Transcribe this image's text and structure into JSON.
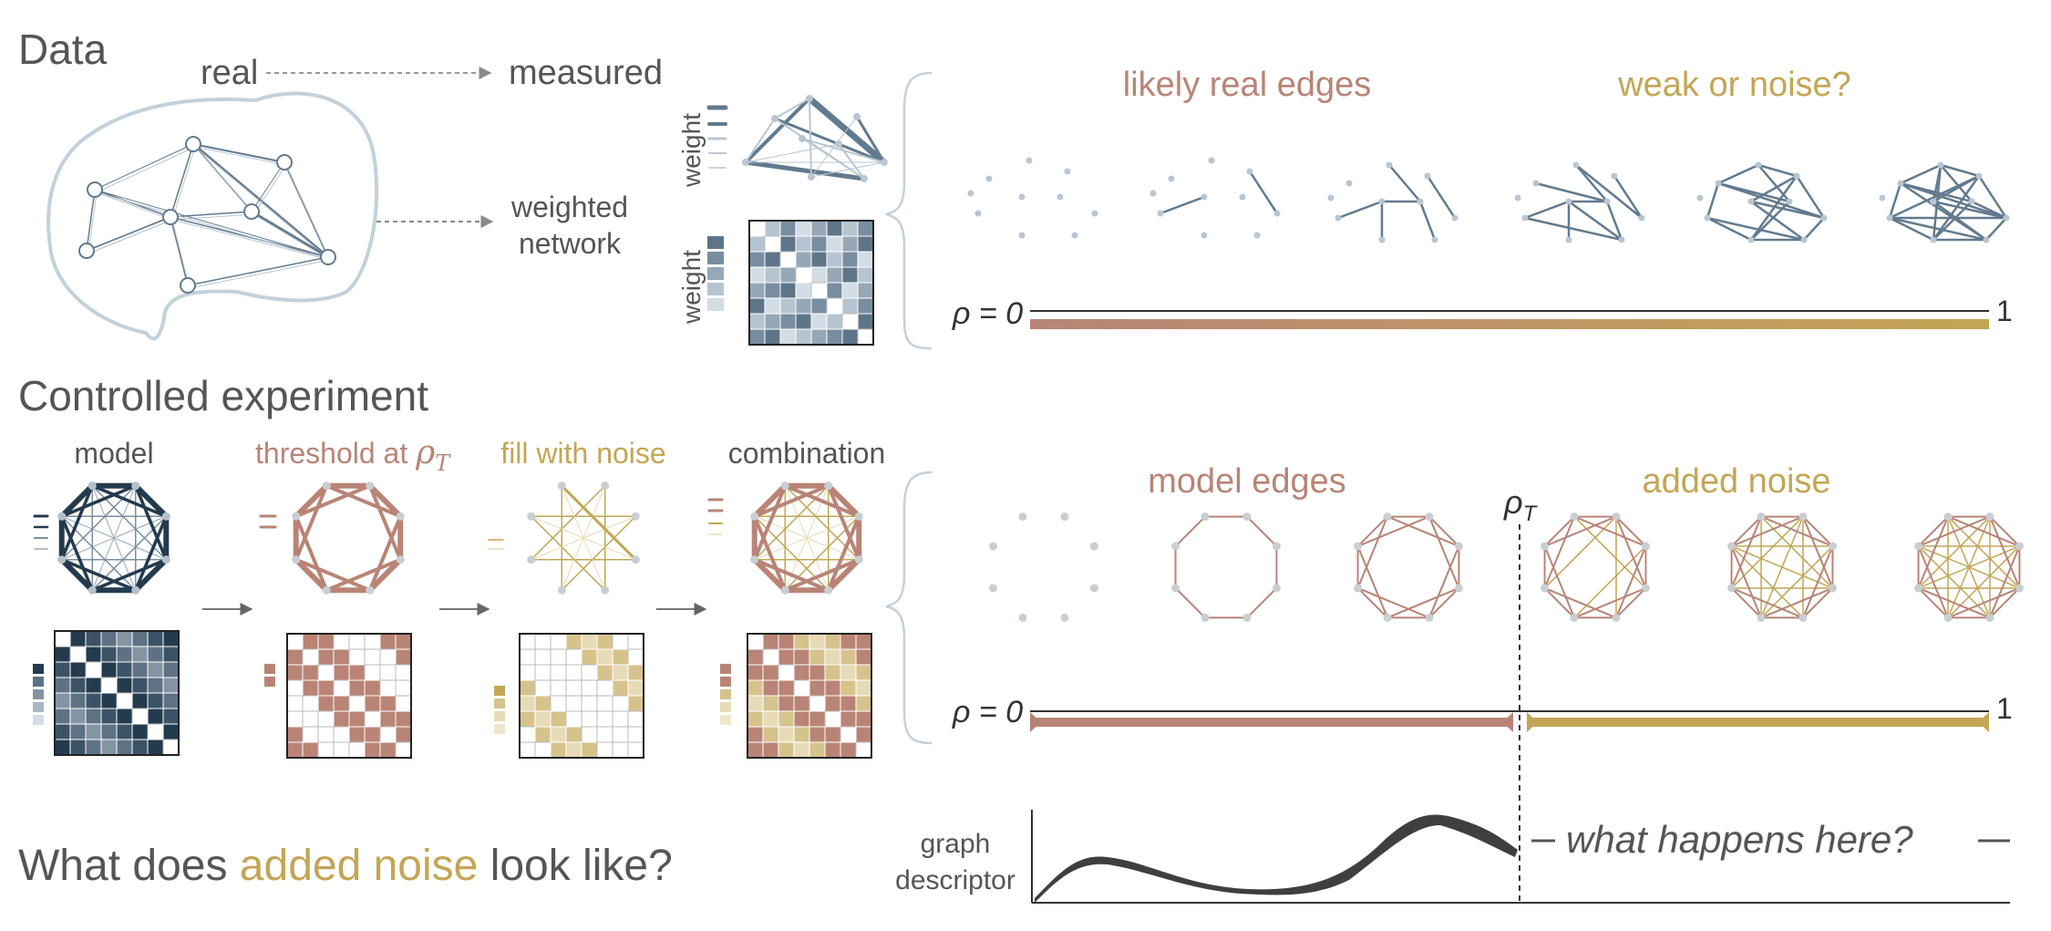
{
  "colors": {
    "model": "#243a4e",
    "blue": "#627a8e",
    "blue_light": "#b9c6d1",
    "brain": "#c3d1da",
    "rose": "#b98476",
    "gold": "#c3a655",
    "gold_light": "#e7dbb7",
    "ink": "#333333",
    "text": "#555555"
  },
  "data_section": {
    "title": "Data",
    "real": "real",
    "measured": "measured",
    "weighted": "weighted",
    "network": "network",
    "weight_axis": "weight",
    "edges_likely": "likely real edges",
    "edges_weak": "weak or noise?",
    "rho_start": "ρ = 0",
    "rho_end": "1"
  },
  "experiment_section": {
    "title": "Controlled experiment",
    "model": "model",
    "threshold": "threshold at",
    "rho_t": "ρ",
    "rho_t_sub": "T",
    "fill": "fill with noise",
    "combination": "combination",
    "model_edges": "model edges",
    "added_noise": "added noise",
    "rho_start": "ρ = 0",
    "rho_end": "1"
  },
  "question": {
    "prefix": "What does ",
    "highlight": "added noise",
    "suffix": " look like?",
    "graph": "graph",
    "descriptor": "descriptor",
    "what_happens": "what happens here?"
  }
}
